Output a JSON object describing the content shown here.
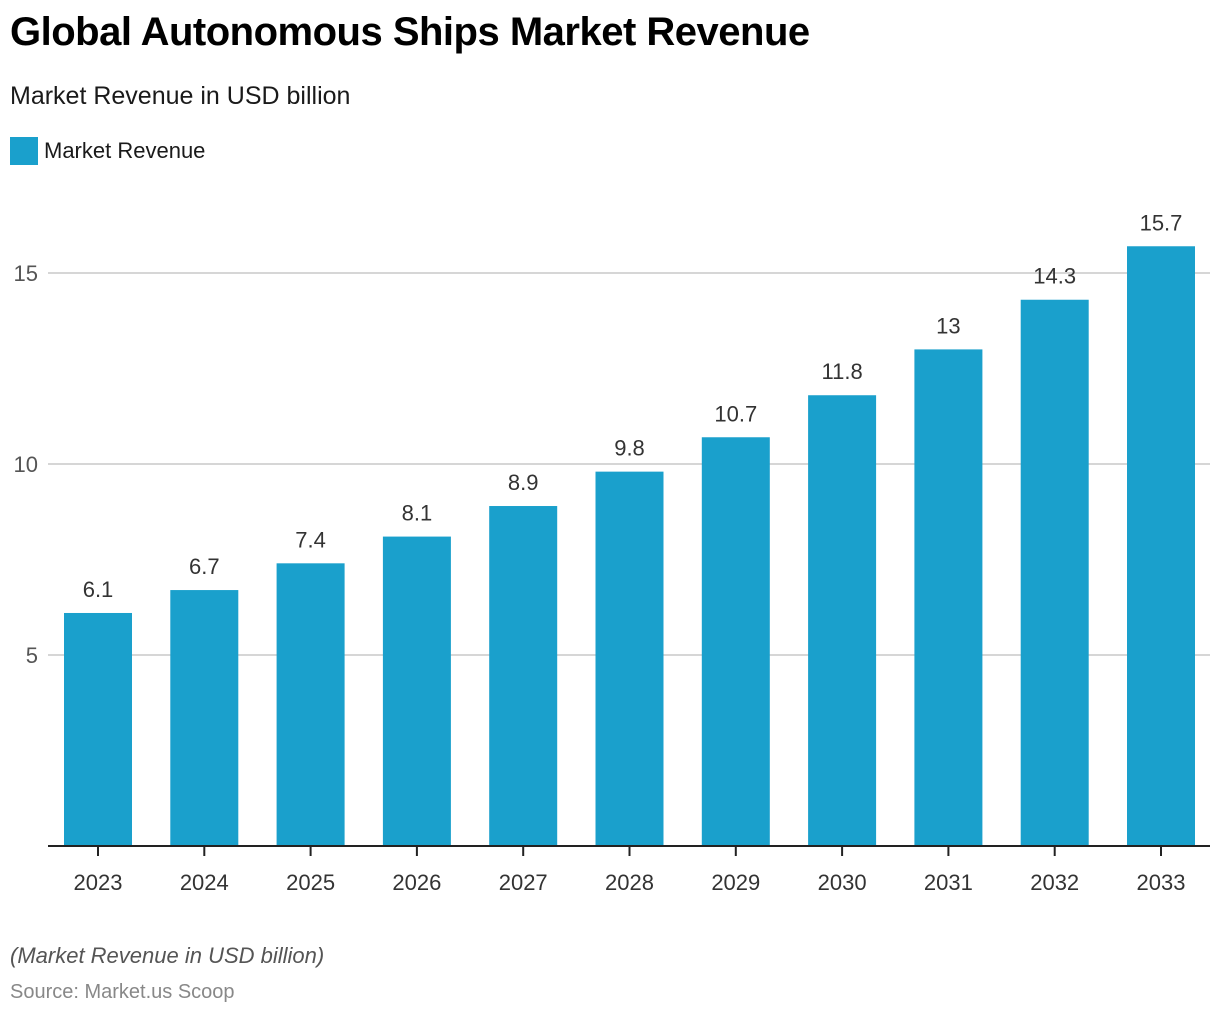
{
  "header": {
    "title": "Global Autonomous Ships Market Revenue",
    "subtitle": "Market Revenue in USD billion"
  },
  "legend": {
    "label": "Market Revenue",
    "color": "#1aa0cc"
  },
  "footer": {
    "note": "(Market Revenue in USD billion)",
    "source": "Source: Market.us Scoop"
  },
  "chart_data": {
    "type": "bar",
    "title": "Global Autonomous Ships Market Revenue",
    "subtitle": "Market Revenue in USD billion",
    "xlabel": "",
    "ylabel": "",
    "categories": [
      "2023",
      "2024",
      "2025",
      "2026",
      "2027",
      "2028",
      "2029",
      "2030",
      "2031",
      "2032",
      "2033"
    ],
    "series": [
      {
        "name": "Market Revenue",
        "color": "#1aa0cc",
        "values": [
          6.1,
          6.7,
          7.4,
          8.1,
          8.9,
          9.8,
          10.7,
          11.8,
          13,
          14.3,
          15.7
        ],
        "labels": [
          "6.1",
          "6.7",
          "7.4",
          "8.1",
          "8.9",
          "9.8",
          "10.7",
          "11.8",
          "13",
          "14.3",
          "15.7"
        ]
      }
    ],
    "yticks": [
      5,
      10,
      15
    ],
    "ylim": [
      0,
      17
    ],
    "grid": true,
    "legend_position": "top-left"
  }
}
